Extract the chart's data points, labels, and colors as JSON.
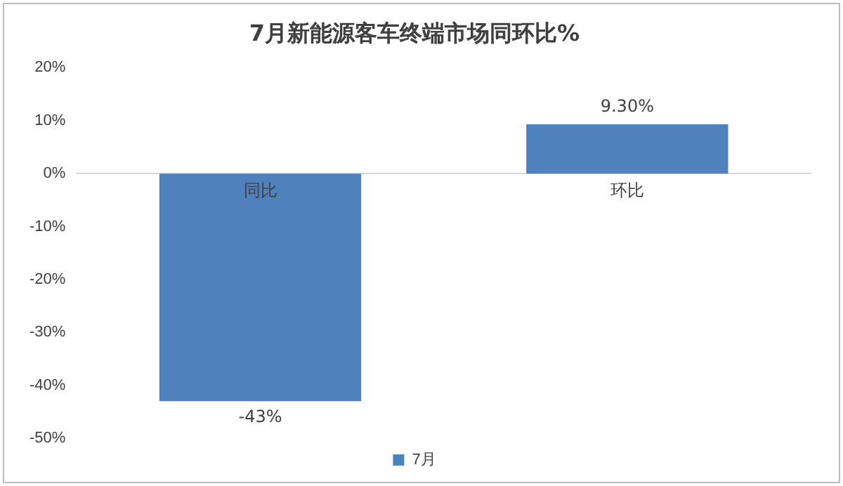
{
  "chart_data": {
    "type": "bar",
    "title": "7月新能源客车终端市场同环比%",
    "categories": [
      "同比",
      "环比"
    ],
    "series": [
      {
        "name": "7月",
        "color": "#4f81bd",
        "values": [
          -43,
          9.3
        ],
        "value_labels": [
          "-43%",
          "9.30%"
        ]
      }
    ],
    "ylim": [
      -50,
      20
    ],
    "yticks": [
      {
        "value": -50,
        "label": "-50%"
      },
      {
        "value": -40,
        "label": "-40%"
      },
      {
        "value": -30,
        "label": "-30%"
      },
      {
        "value": -20,
        "label": "-20%"
      },
      {
        "value": -10,
        "label": "-10%"
      },
      {
        "value": 0,
        "label": "0%"
      },
      {
        "value": 10,
        "label": "10%"
      },
      {
        "value": 20,
        "label": "20%"
      }
    ],
    "grid": false,
    "legend": "bottom"
  }
}
